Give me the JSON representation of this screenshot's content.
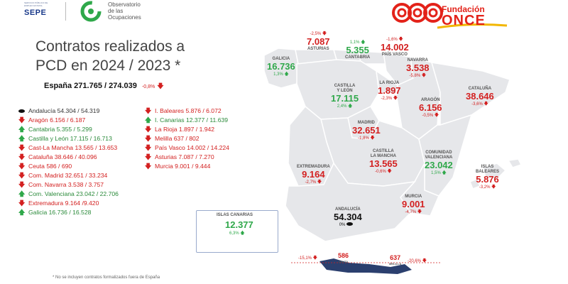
{
  "header": {
    "sepe_label": "SEPE",
    "sepe_small": "SERVICIO PÚBLICO DE EMPLEO ESTATAL",
    "observatorio_line1": "Observatorio",
    "observatorio_line2": "de las",
    "observatorio_line3": "Ocupaciones",
    "fundacion_label": "Fundación",
    "once_label": "ONCE"
  },
  "title": {
    "line1": "Contratos realizados a",
    "line2": "PCD en 2024 / 2023 *"
  },
  "spain": {
    "text": "España  271.765 /  274.039",
    "pct": "-0,8%"
  },
  "list_left": [
    {
      "text": "Andalucía 54.304 / 54.319",
      "marker": "oval",
      "trend": "flat"
    },
    {
      "text": "Aragón 6.156 / 6.187",
      "marker": "down",
      "trend": "down"
    },
    {
      "text": "Cantabria 5.355 / 5.299",
      "marker": "up",
      "trend": "up"
    },
    {
      "text": "Castilla y León 17.115 / 16.713",
      "marker": "up",
      "trend": "up"
    },
    {
      "text": "Cast-La Mancha 13.565 / 13.653",
      "marker": "down",
      "trend": "down"
    },
    {
      "text": "Cataluña 38.646 / 40.096",
      "marker": "down",
      "trend": "down"
    },
    {
      "text": "Ceuta 586 / 690",
      "marker": "down",
      "trend": "down"
    },
    {
      "text": "Com. Madrid 32.651 / 33.234",
      "marker": "down",
      "trend": "down"
    },
    {
      "text": "Com. Navarra 3.538 / 3.757",
      "marker": "down",
      "trend": "down"
    },
    {
      "text": "Com. Valenciana 23.042 / 22.706",
      "marker": "up",
      "trend": "up"
    },
    {
      "text": "Extremadura 9.164 /9.420",
      "marker": "down",
      "trend": "down"
    },
    {
      "text": "Galicia 16.736 / 16.528",
      "marker": "up",
      "trend": "up"
    }
  ],
  "list_right": [
    {
      "text": "I. Baleares 5.876 / 6.072",
      "marker": "down",
      "trend": "down"
    },
    {
      "text": "I. Canarias 12.377 / 11.639",
      "marker": "up",
      "trend": "up"
    },
    {
      "text": "La Rioja 1.897 / 1.942",
      "marker": "down",
      "trend": "down"
    },
    {
      "text": "Melilla 637 / 802",
      "marker": "down",
      "trend": "down"
    },
    {
      "text": "País Vasco 14.002 / 14.224",
      "marker": "down",
      "trend": "down"
    },
    {
      "text": "Asturias 7.087 / 7.270",
      "marker": "down",
      "trend": "down"
    },
    {
      "text": "Murcia 9.001 / 9.444",
      "marker": "down",
      "trend": "down"
    }
  ],
  "map_regions": {
    "galicia": {
      "name": "GALICIA",
      "value": "16.736",
      "pct": "1,3%",
      "trend": "up"
    },
    "asturias": {
      "name": "ASTURIAS",
      "value": "7.087",
      "pct": "-2,5%",
      "trend": "down"
    },
    "cantabria": {
      "name": "CANTABRIA",
      "value": "5.355",
      "pct": "1,1%",
      "trend": "up"
    },
    "paisvasco": {
      "name": "PAÍS VASCO",
      "value": "14.002",
      "pct": "-1,6%",
      "trend": "down"
    },
    "navarra": {
      "name": "NAVARRA",
      "value": "3.538",
      "pct": "-5,8%",
      "trend": "down"
    },
    "cataluna": {
      "name": "CATALUÑA",
      "value": "38.646",
      "pct": "-3,6%",
      "trend": "down"
    },
    "castillaleon": {
      "name_1": "CASTILLA",
      "name_2": "Y LEÓN",
      "value": "17.115",
      "pct": "2,4%",
      "trend": "up"
    },
    "rioja": {
      "name": "LA RIOJA",
      "value": "1.897",
      "pct": "-2,3%",
      "trend": "down"
    },
    "aragon": {
      "name": "ARAGÓN",
      "value": "6.156",
      "pct": "-0,5%",
      "trend": "down"
    },
    "madrid": {
      "name": "MADRID",
      "value": "32.651",
      "pct": "-1,8%",
      "trend": "down"
    },
    "castillamancha": {
      "name_1": "CASTILLA",
      "name_2": "LA MANCHA",
      "value": "13.565",
      "pct": "-0,6%",
      "trend": "down"
    },
    "valenciana": {
      "name_1": "COMUNIDAD",
      "name_2": "VALENCIANA",
      "value": "23.042",
      "pct": "1,5%",
      "trend": "up"
    },
    "baleares": {
      "name_1": "ISLAS",
      "name_2": "BALEARES",
      "value": "5.876",
      "pct": "-3,2%",
      "trend": "down"
    },
    "extremadura": {
      "name": "EXTREMADURA",
      "value": "9.164",
      "pct": "-2,7%",
      "trend": "down"
    },
    "murcia": {
      "name": "MURCIA",
      "value": "9.001",
      "pct": "-4,7%",
      "trend": "down"
    },
    "andalucia": {
      "name": "ANDALUCÍA",
      "value": "54.304",
      "pct": "0%",
      "trend": "flat"
    },
    "canarias": {
      "name": "ISLAS CANARIAS",
      "value": "12.377",
      "pct": "6,3%",
      "trend": "up"
    },
    "ceuta": {
      "name": "CEUTA",
      "value": "586",
      "pct": "-15,1%",
      "trend": "down"
    },
    "melilla": {
      "name": "MELILLA",
      "value": "637",
      "pct": "-20,6%",
      "trend": "down"
    }
  },
  "colors": {
    "down": "#d32020",
    "up": "#2fa84a",
    "map_fill": "#e6e7ea",
    "map_border": "#ffffff",
    "africa_fill": "#2b3f6e"
  },
  "footnote": "* No se incluyen contratos formalizados fuera de España"
}
